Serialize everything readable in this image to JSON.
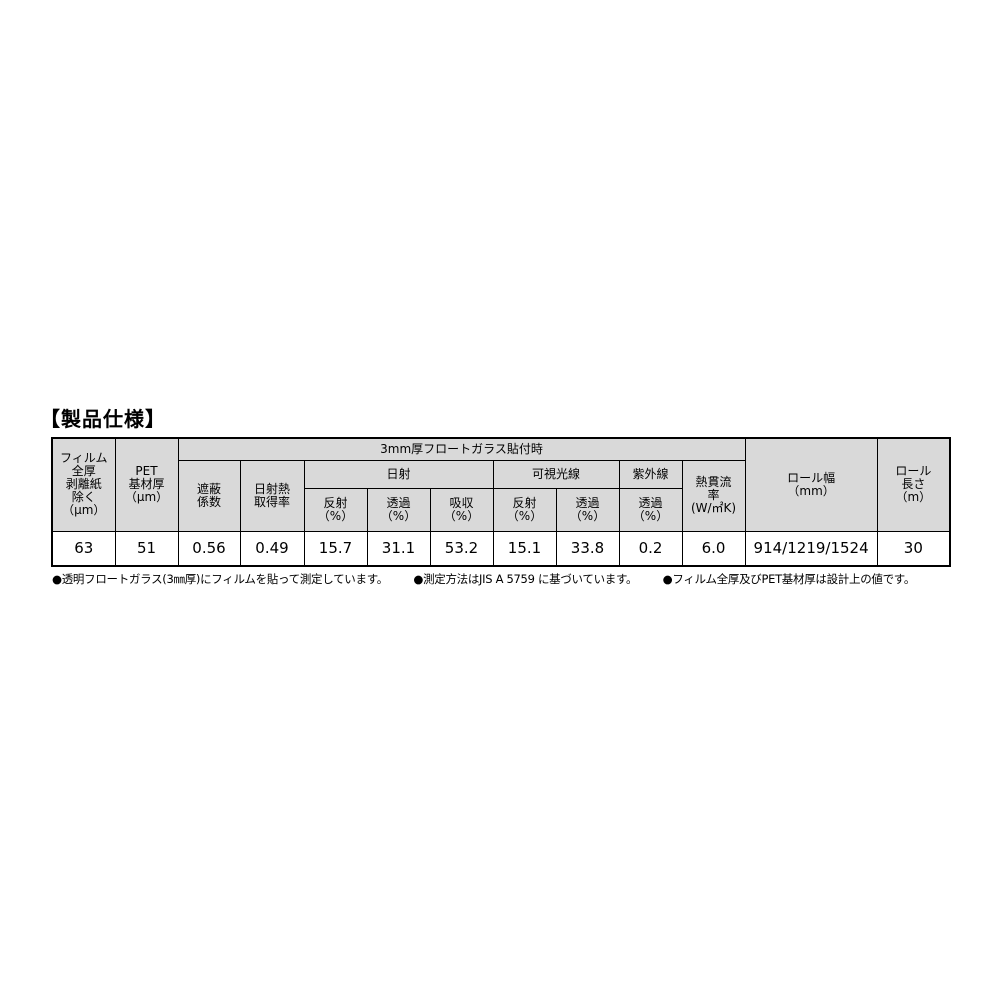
{
  "title": "【製品仕様】",
  "header": {
    "film_thickness": "フィルム\n全厚\n剥離紙\n除く\n（μm）",
    "pet_thickness": "PET\n基材厚\n（μm）",
    "glass_group": "3mm厚フロートガラス貼付時",
    "shading_coefficient": "遮蔽\n係数",
    "solar_heat_gain": "日射熱\n取得率",
    "solar": "日射",
    "visible": "可視光線",
    "uv": "紫外線",
    "u_value": "熱貫流\n率\n(W/㎡K)",
    "roll_width": "ロール幅\n（mm）",
    "roll_length": "ロール\n長さ\n（m）",
    "solar_reflect": "反射\n（%）",
    "solar_transmit": "透過\n（%）",
    "solar_absorb": "吸収\n（%）",
    "visible_reflect": "反射\n（%）",
    "visible_transmit": "透過\n（%）",
    "uv_transmit": "透過\n（%）"
  },
  "row": [
    "63",
    "51",
    "0.56",
    "0.49",
    "15.7",
    "31.1",
    "53.2",
    "15.1",
    "33.8",
    "0.2",
    "6.0",
    "914/1219/1524",
    "30"
  ],
  "notes": [
    "●透明フロートガラス(3㎜厚)にフィルムを貼って測定しています。",
    "●測定方法はJIS A 5759 に基づいています。",
    "●フィルム全厚及びPET基材厚は設計上の値です。"
  ],
  "colors": {
    "header_bg": "#d9d9d9"
  }
}
